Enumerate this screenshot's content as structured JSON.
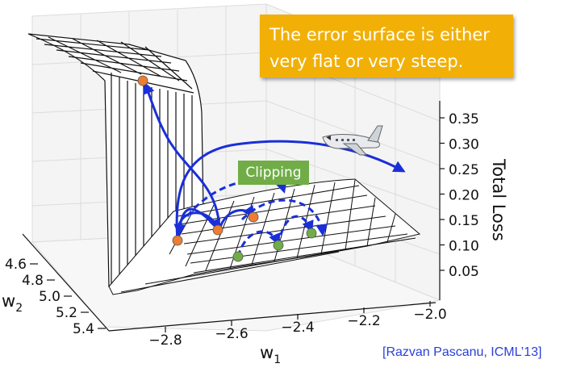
{
  "chart_data": {
    "type": "surface",
    "callout": {
      "line1": "The error surface is either",
      "line2": "very flat or very steep."
    },
    "tag": "Clipping",
    "citation": "[Razvan Pascanu, ICML’13]",
    "xlabel": "w",
    "xlabel_sub": "1",
    "ylabel": "w",
    "ylabel_sub": "2",
    "zlabel": "Total Loss",
    "xticks": [
      "−2.8",
      "−2.6",
      "−2.4",
      "−2.2",
      "−2.0"
    ],
    "yticks": [
      "4.6",
      "4.8",
      "5.0",
      "5.2",
      "5.4"
    ],
    "zticks": [
      "0.35",
      "0.30",
      "0.25",
      "0.20",
      "0.15",
      "0.10",
      "0.05"
    ],
    "colors": {
      "arrows": "#1a2fd8",
      "orange_points": "#ed7d31",
      "green_points": "#70ad47",
      "callout": "#f2b006",
      "tag": "#70ad47",
      "citation": "#2a3fd8"
    },
    "airplane_icon": "airplane-icon"
  }
}
